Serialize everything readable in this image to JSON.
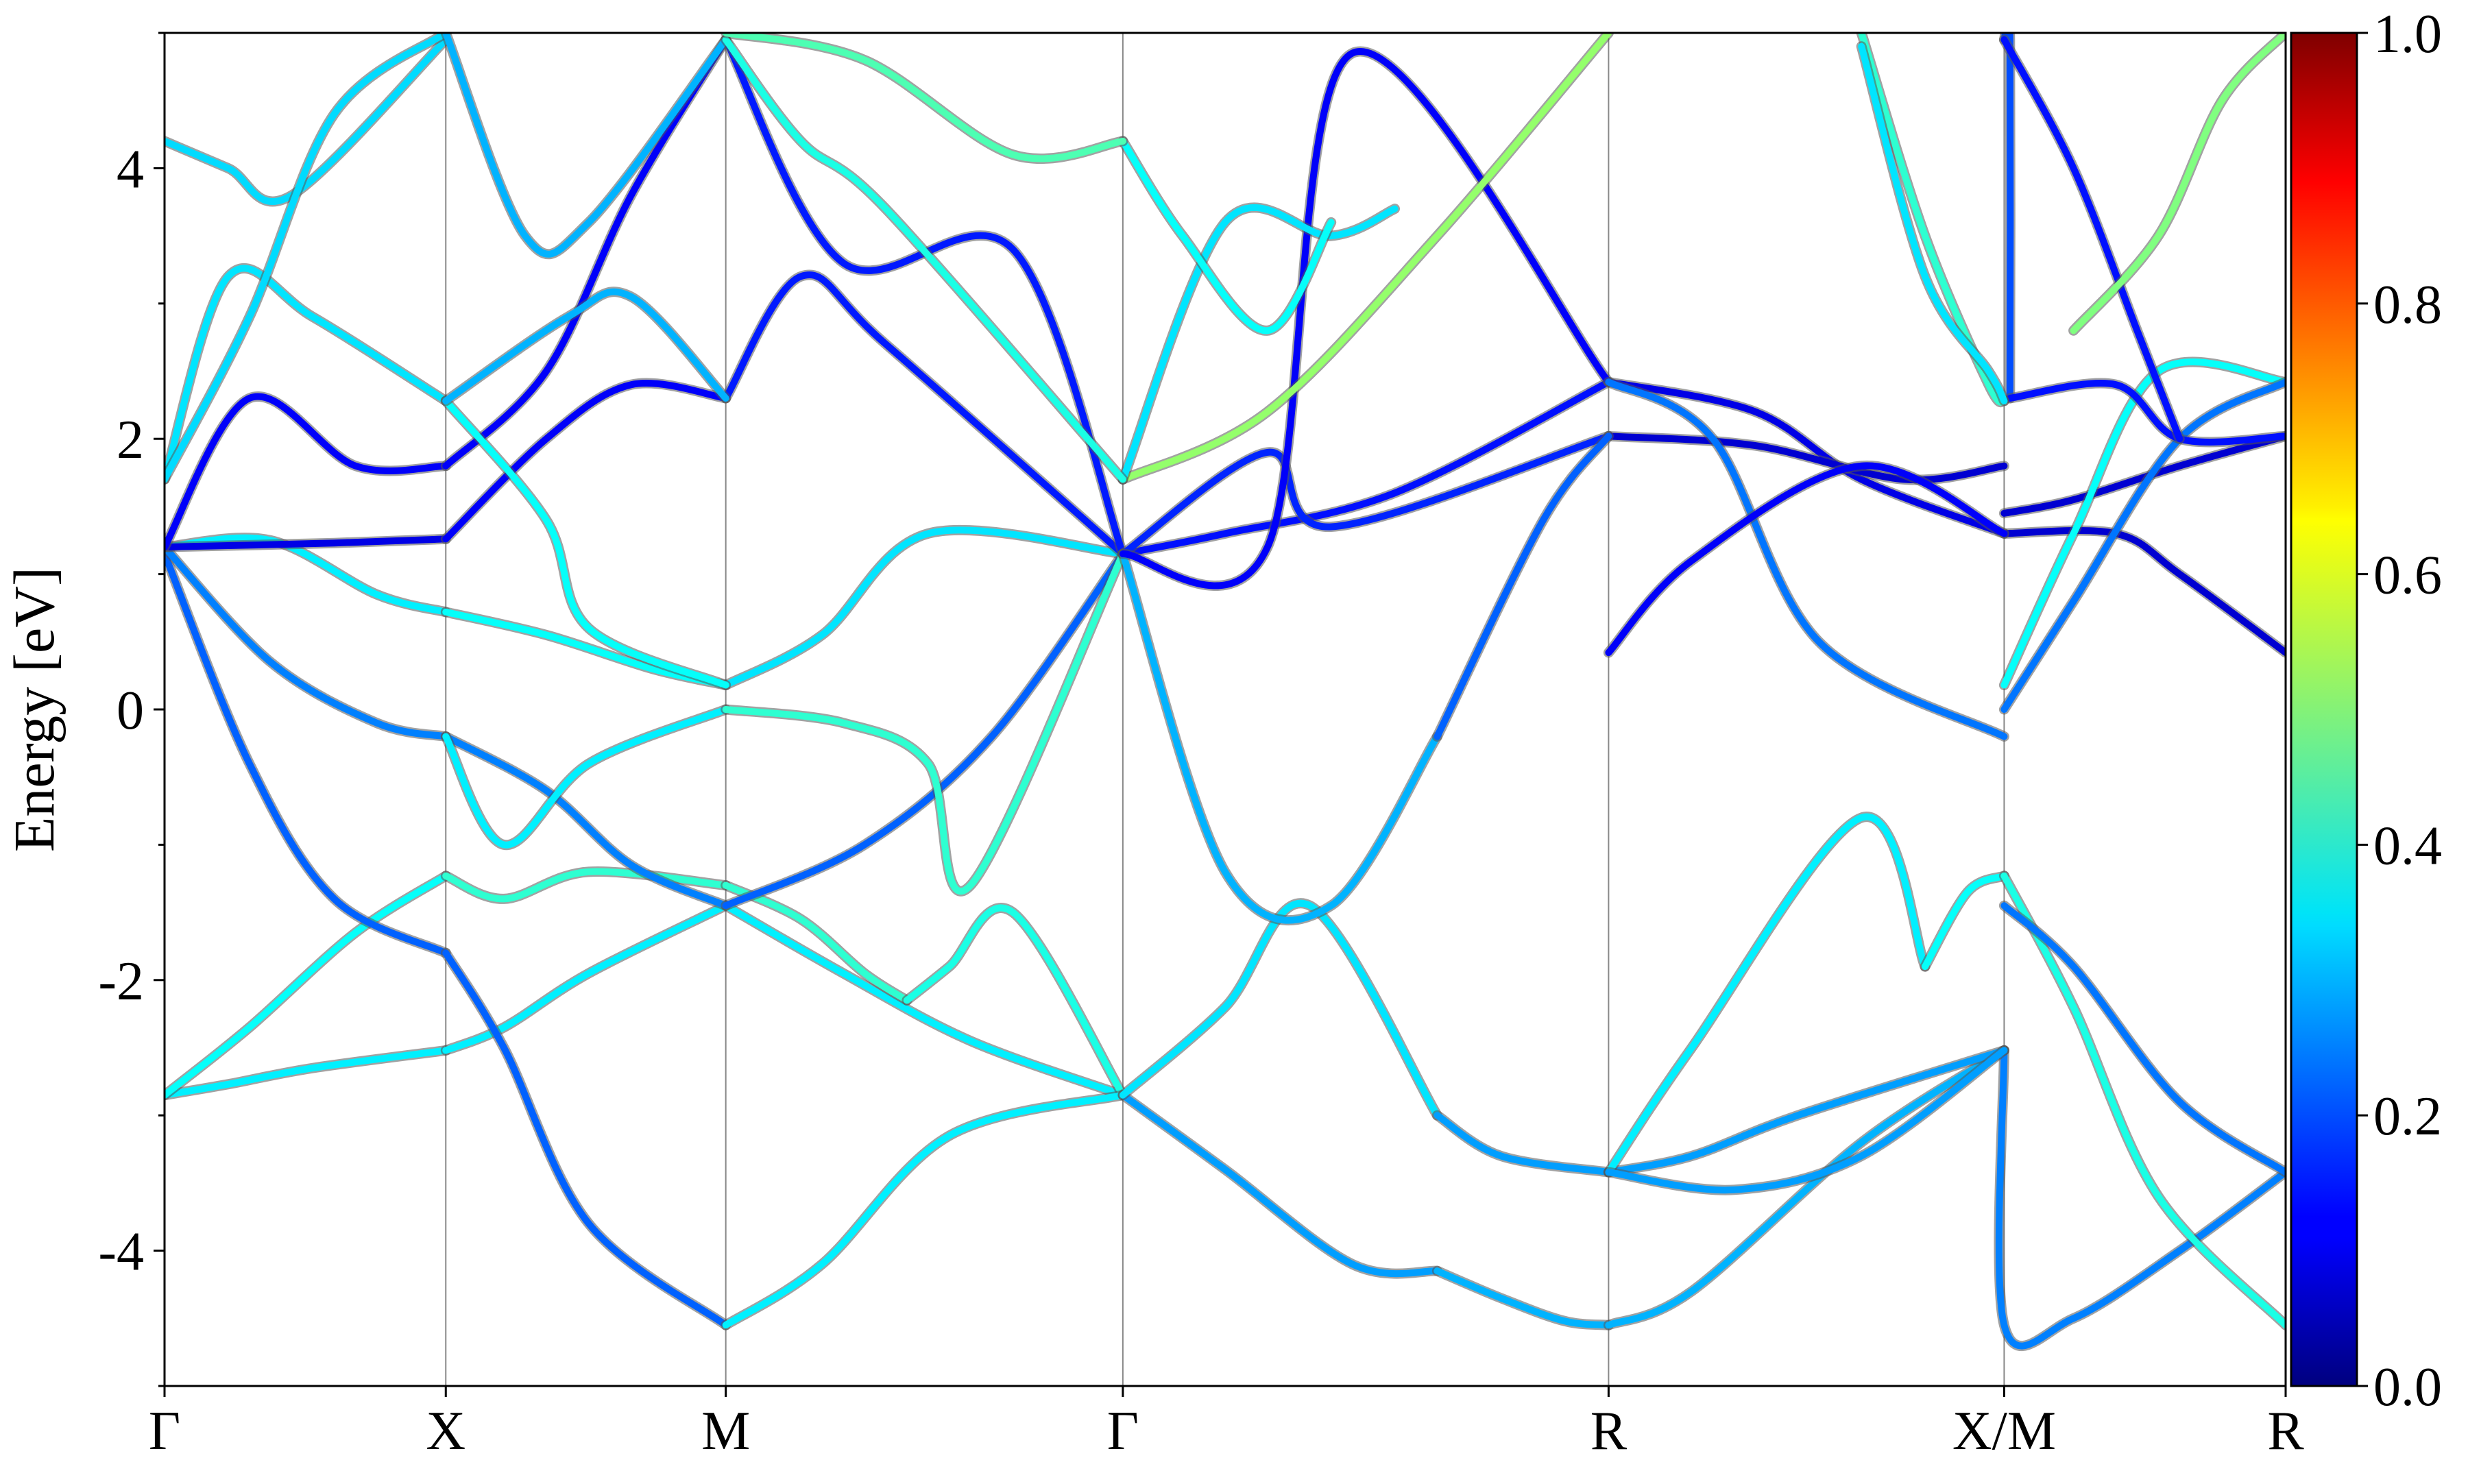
{
  "chart_data": {
    "type": "line",
    "title": "",
    "xlabel": "",
    "ylabel": "Energy [eV]",
    "ylim": [
      -5,
      5
    ],
    "k_ticks": [
      {
        "label": "Γ",
        "pos": 0.0
      },
      {
        "label": "X",
        "pos": 0.1326
      },
      {
        "label": "M",
        "pos": 0.2646
      },
      {
        "label": "Γ",
        "pos": 0.4518
      },
      {
        "label": "R",
        "pos": 0.6808
      },
      {
        "label": "X/M",
        "pos": 0.8673
      },
      {
        "label": "R",
        "pos": 1.0
      }
    ],
    "y_ticks": [
      -4,
      -2,
      0,
      2,
      4
    ],
    "colorbar": {
      "colormap": "jet",
      "range": [
        0.0,
        1.0
      ],
      "ticks": [
        "0.0",
        "0.2",
        "0.4",
        "0.6",
        "0.8",
        "1.0"
      ]
    },
    "grid": "vertical lines at high-symmetry points",
    "legend": "none",
    "series": [
      {
        "x": [
          0,
          0.03,
          0.07,
          0.1326
        ],
        "y": [
          -2.85,
          -2.77,
          -2.65,
          -2.52
        ],
        "c": 0.36
      },
      {
        "x": [
          0.1326,
          0.16,
          0.2,
          0.2646
        ],
        "y": [
          -2.52,
          -2.35,
          -1.95,
          -1.45
        ],
        "c": 0.36
      },
      {
        "x": [
          0.2646,
          0.32,
          0.38,
          0.4518
        ],
        "y": [
          -1.45,
          -1.95,
          -2.45,
          -2.85
        ],
        "c": 0.36
      },
      {
        "x": [
          0,
          0.04,
          0.09,
          0.1326
        ],
        "y": [
          -2.85,
          -2.35,
          -1.65,
          -1.23
        ],
        "c": 0.38
      },
      {
        "x": [
          0.1326,
          0.16,
          0.2,
          0.2646
        ],
        "y": [
          -1.23,
          -1.4,
          -1.2,
          -1.3
        ],
        "c": 0.42
      },
      {
        "x": [
          0.2646,
          0.3,
          0.33,
          0.35
        ],
        "y": [
          -1.3,
          -1.55,
          -1.95,
          -2.15
        ],
        "c": 0.42
      },
      {
        "x": [
          0.35,
          0.37,
          0.4,
          0.4518
        ],
        "y": [
          -2.15,
          -1.9,
          -1.5,
          -2.85
        ],
        "c": 0.4
      },
      {
        "x": [
          0,
          0.04,
          0.08,
          0.1326
        ],
        "y": [
          1.15,
          -0.4,
          -1.4,
          -1.8
        ],
        "c": 0.22
      },
      {
        "x": [
          0.1326,
          0.16,
          0.2,
          0.2646
        ],
        "y": [
          -1.8,
          -2.5,
          -3.8,
          -4.55
        ],
        "c": 0.22
      },
      {
        "x": [
          0.2646,
          0.31,
          0.37,
          0.4518
        ],
        "y": [
          -4.55,
          -4.1,
          -3.15,
          -2.85
        ],
        "c": 0.36
      },
      {
        "x": [
          0.4518,
          0.5,
          0.56,
          0.6
        ],
        "y": [
          -2.85,
          -3.4,
          -4.1,
          -4.15
        ],
        "c": 0.28
      },
      {
        "x": [
          0.6,
          0.63,
          0.66,
          0.6808
        ],
        "y": [
          -4.15,
          -4.35,
          -4.52,
          -4.55
        ],
        "c": 0.3
      },
      {
        "x": [
          0.6808,
          0.72,
          0.8,
          0.8673
        ],
        "y": [
          -4.55,
          -4.3,
          -3.2,
          -2.52
        ],
        "c": 0.3
      },
      {
        "x": [
          0.8673,
          0.8673,
          0.9,
          0.95,
          1.0
        ],
        "y": [
          -2.52,
          -4.55,
          -4.5,
          -4.0,
          -3.42
        ],
        "c": 0.25
      },
      {
        "x": [
          0.4518,
          0.5,
          0.54,
          0.6
        ],
        "y": [
          -2.85,
          -2.2,
          -1.45,
          -3.0
        ],
        "c": 0.35
      },
      {
        "x": [
          0.6,
          0.63,
          0.6808
        ],
        "y": [
          -3.0,
          -3.3,
          -3.42
        ],
        "c": 0.28
      },
      {
        "x": [
          0.6808,
          0.72,
          0.77,
          0.8673
        ],
        "y": [
          -3.42,
          -3.3,
          -3.0,
          -2.52
        ],
        "c": 0.28
      },
      {
        "x": [
          0.6808,
          0.72,
          0.8,
          0.83
        ],
        "y": [
          -3.42,
          -2.5,
          -0.8,
          -1.9
        ],
        "c": 0.36
      },
      {
        "x": [
          0.83,
          0.85,
          0.8673
        ],
        "y": [
          -1.9,
          -1.35,
          -1.23
        ],
        "c": 0.38
      },
      {
        "x": [
          0.8673,
          0.9,
          0.94,
          1.0
        ],
        "y": [
          -1.23,
          -2.2,
          -3.6,
          -4.55
        ],
        "c": 0.4
      },
      {
        "x": [
          0.8673,
          0.9,
          0.95,
          1.0
        ],
        "y": [
          -1.45,
          -1.9,
          -2.9,
          -3.42
        ],
        "c": 0.24
      },
      {
        "x": [
          0.6808,
          0.74,
          0.8,
          0.8673
        ],
        "y": [
          -3.42,
          -3.55,
          -3.3,
          -2.52
        ],
        "c": 0.28
      },
      {
        "x": [
          0,
          0.05,
          0.1,
          0.1326
        ],
        "y": [
          1.2,
          0.35,
          -0.1,
          -0.2
        ],
        "c": 0.25
      },
      {
        "x": [
          0.1326,
          0.18,
          0.22,
          0.2646
        ],
        "y": [
          -0.2,
          -0.6,
          -1.15,
          -1.45
        ],
        "c": 0.25
      },
      {
        "x": [
          0.2646,
          0.33,
          0.39,
          0.4518
        ],
        "y": [
          -1.45,
          -1.0,
          -0.2,
          1.15
        ],
        "c": 0.22
      },
      {
        "x": [
          0,
          0.05,
          0.1,
          0.1326
        ],
        "y": [
          1.2,
          1.25,
          0.85,
          0.72
        ],
        "c": 0.36
      },
      {
        "x": [
          0.1326,
          0.18,
          0.23,
          0.2646
        ],
        "y": [
          0.72,
          0.55,
          0.3,
          0.18
        ],
        "c": 0.38
      },
      {
        "x": [
          0.2646,
          0.31,
          0.36,
          0.4518
        ],
        "y": [
          0.18,
          0.55,
          1.3,
          1.15
        ],
        "c": 0.35
      },
      {
        "x": [
          0.1326,
          0.16,
          0.2,
          0.2646
        ],
        "y": [
          -0.2,
          -1.0,
          -0.4,
          0.0
        ],
        "c": 0.36
      },
      {
        "x": [
          0.2646,
          0.32,
          0.36,
          0.38,
          0.4518
        ],
        "y": [
          0.0,
          -0.1,
          -0.4,
          -1.3,
          1.15
        ],
        "c": 0.42
      },
      {
        "x": [
          0.0,
          0.08,
          0.1326
        ],
        "y": [
          1.2,
          1.23,
          1.26
        ],
        "c": 0.1
      },
      {
        "x": [
          0.1326,
          0.18,
          0.22,
          0.2646
        ],
        "y": [
          1.26,
          2.0,
          2.4,
          2.3
        ],
        "c": 0.12
      },
      {
        "x": [
          0.2646,
          0.3,
          0.34,
          0.4518
        ],
        "y": [
          2.3,
          3.2,
          2.7,
          1.15
        ],
        "c": 0.15
      },
      {
        "x": [
          0,
          0.04,
          0.09,
          0.1326
        ],
        "y": [
          1.2,
          2.3,
          1.8,
          1.8
        ],
        "c": 0.12
      },
      {
        "x": [
          0.1326,
          0.18,
          0.22,
          0.2646
        ],
        "y": [
          1.8,
          2.5,
          3.8,
          4.95
        ],
        "c": 0.12
      },
      {
        "x": [
          0.2646,
          0.32,
          0.4,
          0.4518
        ],
        "y": [
          4.95,
          3.3,
          3.4,
          1.15
        ],
        "c": 0.15
      },
      {
        "x": [
          0.4518,
          0.5,
          0.58,
          0.6808
        ],
        "y": [
          1.15,
          1.3,
          1.6,
          2.42
        ],
        "c": 0.14
      },
      {
        "x": [
          0.6808,
          0.75,
          0.8,
          0.8673
        ],
        "y": [
          2.42,
          2.2,
          1.7,
          1.3
        ],
        "c": 0.1
      },
      {
        "x": [
          0.8673,
          0.92,
          0.95,
          1.0
        ],
        "y": [
          1.3,
          1.3,
          1.0,
          0.42
        ],
        "c": 0.08
      },
      {
        "x": [
          0.4518,
          0.52,
          0.55,
          0.6808
        ],
        "y": [
          1.15,
          1.9,
          1.35,
          2.02
        ],
        "c": 0.16
      },
      {
        "x": [
          0.6808,
          0.75,
          0.82,
          0.8673
        ],
        "y": [
          2.02,
          1.95,
          1.7,
          1.8
        ],
        "c": 0.08
      },
      {
        "x": [
          0.8673,
          0.9,
          0.95,
          1.0
        ],
        "y": [
          1.45,
          1.55,
          1.8,
          2.02
        ],
        "c": 0.08
      },
      {
        "x": [
          0.4518,
          0.5,
          0.55,
          0.6
        ],
        "y": [
          1.15,
          -1.2,
          -1.45,
          -0.2
        ],
        "c": 0.3
      },
      {
        "x": [
          0.6,
          0.65,
          0.6808
        ],
        "y": [
          -0.2,
          1.4,
          2.02
        ],
        "c": 0.22
      },
      {
        "x": [
          0.4518,
          0.52,
          0.56,
          0.6808
        ],
        "y": [
          1.15,
          1.2,
          4.85,
          2.42
        ],
        "c": 0.12
      },
      {
        "x": [
          0.6808,
          0.73,
          0.78,
          0.8673
        ],
        "y": [
          2.42,
          2.0,
          0.5,
          -0.2
        ],
        "c": 0.24
      },
      {
        "x": [
          0.6808,
          0.72,
          0.8,
          0.8673
        ],
        "y": [
          0.42,
          1.1,
          1.8,
          1.3
        ],
        "c": 0.12
      },
      {
        "x": [
          0.8673,
          0.9,
          0.94,
          1.0
        ],
        "y": [
          0.18,
          1.3,
          2.5,
          2.42
        ],
        "c": 0.38
      },
      {
        "x": [
          0.8673,
          0.9,
          0.95,
          1.0
        ],
        "y": [
          0.0,
          0.8,
          2.0,
          2.42
        ],
        "c": 0.24
      },
      {
        "x": [
          0.8673,
          0.87,
          0.87
        ],
        "y": [
          4.95,
          4.95,
          2.3
        ],
        "c": 0.2
      },
      {
        "x": [
          0.87,
          0.92,
          0.95,
          1.0
        ],
        "y": [
          2.3,
          2.4,
          2.0,
          2.02
        ],
        "c": 0.14
      },
      {
        "x": [
          0.8673,
          0.9,
          0.93,
          0.95
        ],
        "y": [
          4.95,
          4.0,
          2.8,
          2.0
        ],
        "c": 0.14
      },
      {
        "x": [
          0.4518,
          0.52,
          0.6,
          0.6808
        ],
        "y": [
          1.7,
          2.2,
          3.5,
          5.0
        ],
        "c": 0.52
      },
      {
        "x": [
          0.4518,
          0.5,
          0.55,
          0.58
        ],
        "y": [
          1.7,
          3.6,
          3.5,
          3.7
        ],
        "c": 0.35
      },
      {
        "x": [
          0.4518,
          0.48,
          0.52,
          0.55
        ],
        "y": [
          4.2,
          3.5,
          2.8,
          3.6
        ],
        "c": 0.38
      },
      {
        "x": [
          0.0,
          0.03,
          0.06,
          0.1326
        ],
        "y": [
          4.2,
          4.0,
          3.8,
          4.95
        ],
        "c": 0.34
      },
      {
        "x": [
          0.0,
          0.03,
          0.07,
          0.1326
        ],
        "y": [
          1.7,
          3.2,
          2.9,
          2.28
        ],
        "c": 0.35
      },
      {
        "x": [
          0.1326,
          0.18,
          0.2,
          0.2646
        ],
        "y": [
          2.28,
          1.4,
          0.6,
          0.18
        ],
        "c": 0.38
      },
      {
        "x": [
          0.0,
          0.04,
          0.08,
          0.1326
        ],
        "y": [
          1.7,
          2.9,
          4.4,
          5.0
        ],
        "c": 0.34
      },
      {
        "x": [
          0.1326,
          0.19,
          0.22,
          0.2646
        ],
        "y": [
          2.28,
          2.9,
          3.05,
          2.3
        ],
        "c": 0.3
      },
      {
        "x": [
          0.1326,
          0.17,
          0.2,
          0.2646
        ],
        "y": [
          5.0,
          3.5,
          3.6,
          4.95
        ],
        "c": 0.3
      },
      {
        "x": [
          0.2646,
          0.3,
          0.34,
          0.4518
        ],
        "y": [
          4.95,
          4.2,
          3.7,
          1.7
        ],
        "c": 0.4
      },
      {
        "x": [
          0.2646,
          0.33,
          0.4,
          0.4518
        ],
        "y": [
          5.0,
          4.8,
          4.1,
          4.2
        ],
        "c": 0.45
      },
      {
        "x": [
          0.8,
          0.83,
          0.86,
          0.8673
        ],
        "y": [
          5.0,
          3.5,
          2.4,
          2.28
        ],
        "c": 0.42
      },
      {
        "x": [
          0.8673,
          0.86,
          0.83,
          0.8
        ],
        "y": [
          2.28,
          2.5,
          3.2,
          4.9
        ],
        "c": 0.35
      },
      {
        "x": [
          0.9,
          0.94,
          0.97,
          1.0
        ],
        "y": [
          2.8,
          3.5,
          4.5,
          5.0
        ],
        "c": 0.5
      }
    ]
  }
}
